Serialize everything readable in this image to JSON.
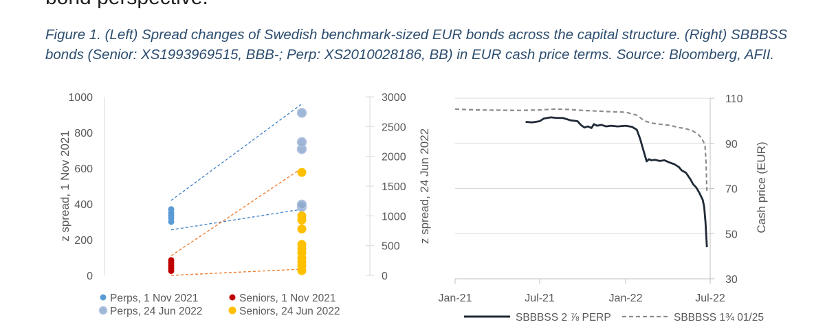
{
  "page": {
    "heading_fragment": "bond perspective.",
    "caption_lines": [
      "Figure 1. (Left) Spread changes of Swedish benchmark-sized EUR bonds across the capital structure. (Right) SBBBSS",
      "bonds (Senior: XS1993969515, BBB-;  Perp: XS2010028186, BB) in EUR cash price terms. Source: Bloomberg, AFII."
    ]
  },
  "colors": {
    "perps_nov": "#5b9bd5",
    "perps_jun": "#8ea9cf",
    "seniors_nov": "#c00000",
    "seniors_jun": "#ffc000",
    "trend_blue": "#4a86c8",
    "trend_orange": "#ed7d31",
    "perp_line": "#1f2a36",
    "senior_line": "#8c8c8c"
  },
  "chart_data": [
    {
      "type": "scatter",
      "title": "",
      "ylabel": "z spread, 1 Nov 2021",
      "y2label": "z spread, 24 Jun 2022",
      "ylim": [
        0,
        1000
      ],
      "y2lim": [
        0,
        3000
      ],
      "yticks": [
        "0",
        "200",
        "400",
        "600",
        "800",
        "1000"
      ],
      "y2ticks": [
        "0",
        "500",
        "1000",
        "1500",
        "2000",
        "2500",
        "3000"
      ],
      "categories": [
        "1 Nov 2021",
        "24 Jun 2022"
      ],
      "series": [
        {
          "name": "Perps, 1 Nov 2021",
          "axis": "left",
          "x": 1,
          "values": [
            300,
            320,
            335,
            350,
            370
          ]
        },
        {
          "name": "Seniors, 1 Nov 2021",
          "axis": "left",
          "x": 1,
          "values": [
            25,
            40,
            55,
            70,
            85
          ]
        },
        {
          "name": "Perps, 24 Jun 2022",
          "axis": "right",
          "x": 2,
          "values": [
            1150,
            1190,
            2120,
            2240,
            2730
          ]
        },
        {
          "name": "Seniors, 24 Jun 2022",
          "axis": "right",
          "x": 2,
          "values": [
            80,
            160,
            230,
            290,
            380,
            450,
            520,
            780,
            930,
            1000,
            1730
          ]
        }
      ],
      "trendlines": [
        {
          "color": "trend_blue",
          "axis": "left",
          "from": [
            1,
            420
          ],
          "to": [
            2,
            960
          ]
        },
        {
          "color": "trend_blue",
          "axis": "left",
          "from": [
            1,
            255
          ],
          "to": [
            2,
            370
          ]
        },
        {
          "color": "trend_orange",
          "axis": "left",
          "from": [
            1,
            110
          ],
          "to": [
            2,
            600
          ]
        },
        {
          "color": "trend_orange",
          "axis": "left",
          "from": [
            1,
            0
          ],
          "to": [
            2,
            35
          ]
        }
      ],
      "legend": "bottom",
      "grid": false
    },
    {
      "type": "line",
      "title": "",
      "xlabel": "",
      "ylabel": "Cash price (EUR)",
      "ylim": [
        30,
        110
      ],
      "yticks": [
        "30",
        "50",
        "70",
        "90",
        "110"
      ],
      "xticks": [
        "Jan-21",
        "Jul-21",
        "Jan-22",
        "Jul-22"
      ],
      "xlim": [
        "2021-01",
        "2022-07"
      ],
      "grid": true,
      "legend": "bottom",
      "series": [
        {
          "name": "SBBBSS 2 ⅞ PERP",
          "style": "solid",
          "x": [
            "2021-06-01",
            "2021-06-15",
            "2021-07-01",
            "2021-07-10",
            "2021-07-25",
            "2021-08-05",
            "2021-08-20",
            "2021-09-05",
            "2021-09-20",
            "2021-09-28",
            "2021-10-05",
            "2021-10-12",
            "2021-10-20",
            "2021-10-25",
            "2021-11-01",
            "2021-11-10",
            "2021-11-20",
            "2021-12-01",
            "2021-12-15",
            "2022-01-01",
            "2022-01-15",
            "2022-01-25",
            "2022-02-01",
            "2022-02-08",
            "2022-02-15",
            "2022-02-20",
            "2022-02-25",
            "2022-03-05",
            "2022-03-15",
            "2022-03-25",
            "2022-04-05",
            "2022-04-15",
            "2022-04-25",
            "2022-05-01",
            "2022-05-10",
            "2022-05-20",
            "2022-05-25",
            "2022-06-01",
            "2022-06-08",
            "2022-06-15",
            "2022-06-18",
            "2022-06-21",
            "2022-06-24"
          ],
          "values": [
            99.5,
            99.3,
            99.8,
            101,
            101.5,
            101.3,
            101.2,
            100.2,
            99.8,
            98,
            97,
            97.5,
            96.8,
            98.5,
            97.8,
            98.2,
            97.5,
            97.8,
            97.5,
            97.8,
            97.3,
            96,
            92,
            87,
            82,
            83,
            82.5,
            82.7,
            82.2,
            82.5,
            81.5,
            80.8,
            79.5,
            78,
            77,
            74,
            72,
            70.5,
            68,
            65,
            62,
            55,
            44
          ]
        },
        {
          "name": "SBBBSS 1¾ 01/25",
          "style": "dashed",
          "x": [
            "2021-01-01",
            "2021-02-15",
            "2021-04-01",
            "2021-05-15",
            "2021-07-01",
            "2021-08-01",
            "2021-09-01",
            "2021-10-01",
            "2021-11-01",
            "2021-12-01",
            "2022-01-01",
            "2022-01-25",
            "2022-02-10",
            "2022-02-25",
            "2022-03-15",
            "2022-04-05",
            "2022-04-25",
            "2022-05-10",
            "2022-05-25",
            "2022-06-05",
            "2022-06-12",
            "2022-06-17",
            "2022-06-20",
            "2022-06-22",
            "2022-06-24"
          ],
          "values": [
            105.2,
            104.8,
            104.7,
            104.6,
            104.8,
            105.2,
            105,
            104.6,
            104.3,
            104,
            103.8,
            102.5,
            100,
            99,
            98.5,
            98,
            97,
            96.5,
            95.5,
            94,
            92.5,
            90.5,
            89,
            82,
            69
          ]
        }
      ]
    }
  ]
}
